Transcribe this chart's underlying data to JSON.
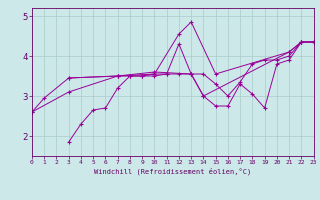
{
  "xlabel": "Windchill (Refroidissement éolien,°C)",
  "xlim": [
    0,
    23
  ],
  "ylim": [
    1.5,
    5.2
  ],
  "yticks": [
    2,
    3,
    4,
    5
  ],
  "xticks": [
    0,
    1,
    2,
    3,
    4,
    5,
    6,
    7,
    8,
    9,
    10,
    11,
    12,
    13,
    14,
    15,
    16,
    17,
    18,
    19,
    20,
    21,
    22,
    23
  ],
  "bg_color": "#cce8e8",
  "line_color": "#990099",
  "grid_color": "#aacccc",
  "line1_x": [
    0,
    1,
    3,
    7,
    10,
    12,
    13,
    15,
    21,
    22,
    23
  ],
  "line1_y": [
    2.6,
    2.95,
    3.45,
    3.5,
    3.55,
    4.55,
    4.85,
    3.55,
    4.1,
    4.35,
    4.35
  ],
  "line2_x": [
    3,
    7,
    10,
    13,
    14,
    21,
    22,
    23
  ],
  "line2_y": [
    3.45,
    3.5,
    3.6,
    3.55,
    3.0,
    4.1,
    4.35,
    4.35
  ],
  "line3_x": [
    3,
    4,
    5,
    6,
    7,
    8,
    9,
    10,
    11,
    12,
    13,
    14,
    15,
    16,
    17,
    18,
    19,
    20,
    21,
    22,
    23
  ],
  "line3_y": [
    1.85,
    2.3,
    2.65,
    2.7,
    3.2,
    3.5,
    3.5,
    3.55,
    3.55,
    4.3,
    3.55,
    3.0,
    2.75,
    2.75,
    3.3,
    3.05,
    2.7,
    3.8,
    3.9,
    4.35,
    4.35
  ],
  "line4_x": [
    0,
    3,
    7,
    8,
    9,
    10,
    11,
    12,
    13,
    14,
    15,
    16,
    17,
    18,
    19,
    20,
    21,
    22,
    23
  ],
  "line4_y": [
    2.6,
    3.1,
    3.5,
    3.5,
    3.5,
    3.5,
    3.55,
    3.55,
    3.55,
    3.55,
    3.3,
    3.0,
    3.35,
    3.8,
    3.9,
    3.9,
    4.0,
    4.35,
    4.35
  ]
}
